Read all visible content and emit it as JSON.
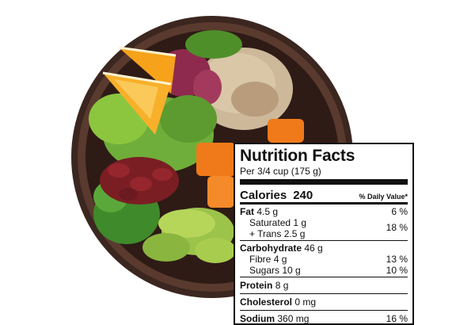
{
  "nutrition": {
    "title": "Nutrition Facts",
    "serving_label": "Per",
    "serving_size": "3/4 cup (175 g)",
    "calories_label": "Calories",
    "calories_value": "240",
    "daily_value_header": "% Daily Value*",
    "fat": {
      "label": "Fat",
      "value": "4.5 g",
      "dv": "6 %"
    },
    "saturated": {
      "label": "Saturated",
      "value": "1 g"
    },
    "trans": {
      "label": "+ Trans",
      "value": "2.5 g"
    },
    "sat_trans_dv": "18 %",
    "carbohydrate": {
      "label": "Carbohydrate",
      "value": "46 g"
    },
    "fibre": {
      "label": "Fibre",
      "value": "4 g",
      "dv": "13 %"
    },
    "sugars": {
      "label": "Sugars",
      "value": "10 g",
      "dv": "10 %"
    },
    "protein": {
      "label": "Protein",
      "value": "8 g"
    },
    "cholesterol": {
      "label": "Cholesterol",
      "value": "0 mg"
    },
    "sodium": {
      "label": "Sodium",
      "value": "360 mg",
      "dv": "16 %"
    }
  },
  "colors": {
    "bowl": "#3b2620",
    "orange": "#f6a21a",
    "lettuce": "#6fae3a",
    "quinoa": "#cdb89a",
    "beans": "#7a1e24",
    "carrot": "#f07a1a",
    "avocado": "#9cc34a",
    "radicchio": "#8e2a4e"
  }
}
